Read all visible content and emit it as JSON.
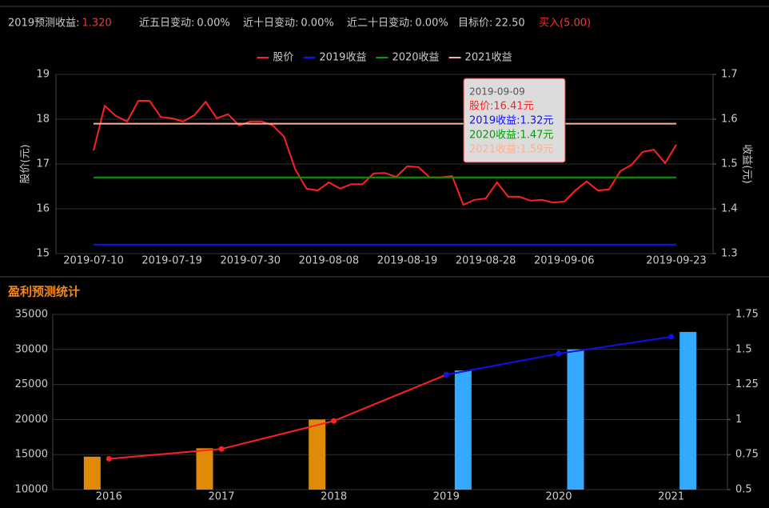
{
  "header": {
    "items": [
      {
        "label": "2019预测收益:",
        "value": "1.320"
      },
      {
        "label": "近五日变动:",
        "value": "0.00%"
      },
      {
        "label": "近十日变动:",
        "value": "0.00%"
      },
      {
        "label": "近二十日变动:",
        "value": "0.00%"
      },
      {
        "label": "目标价:",
        "value": "22.50"
      }
    ],
    "rating": "买入(5.00)"
  },
  "chart_data": [
    {
      "type": "line",
      "ylabel": "股价(元)",
      "y2label": "收益(元)",
      "categories": [
        "2019-07-10",
        null,
        null,
        null,
        null,
        null,
        null,
        "2019-07-19",
        null,
        null,
        null,
        null,
        null,
        null,
        "2019-07-30",
        null,
        null,
        null,
        null,
        null,
        null,
        "2019-08-08",
        null,
        null,
        null,
        null,
        null,
        null,
        "2019-08-19",
        null,
        null,
        null,
        null,
        null,
        null,
        "2019-08-28",
        null,
        null,
        null,
        null,
        null,
        null,
        "2019-09-06",
        null,
        null,
        null,
        null,
        null,
        null,
        null,
        null,
        null,
        "2019-09-23"
      ],
      "series": [
        {
          "name": "股价",
          "color": "#ff2020",
          "values": [
            17.3,
            18.3,
            18.07,
            17.95,
            18.41,
            18.41,
            18.05,
            18.02,
            17.95,
            18.09,
            18.39,
            18.02,
            18.11,
            17.86,
            17.95,
            17.95,
            17.86,
            17.61,
            16.88,
            16.45,
            16.41,
            16.59,
            16.45,
            16.55,
            16.55,
            16.79,
            16.8,
            16.71,
            16.95,
            16.93,
            16.7,
            16.7,
            16.73,
            16.09,
            16.2,
            16.23,
            16.59,
            16.27,
            16.27,
            16.18,
            16.2,
            16.14,
            16.16,
            16.41,
            16.61,
            16.41,
            16.43,
            16.84,
            16.98,
            17.27,
            17.32,
            17.02,
            17.43
          ]
        },
        {
          "name": "2019收益",
          "color": "#1010ff",
          "axis": "y2",
          "values": [
            1.32,
            1.32,
            1.32,
            1.32,
            1.32,
            1.32,
            1.32,
            1.32,
            1.32,
            1.32,
            1.32,
            1.32,
            1.32,
            1.32,
            1.32,
            1.32,
            1.32,
            1.32,
            1.32,
            1.32,
            1.32,
            1.32,
            1.32,
            1.32,
            1.32,
            1.32,
            1.32,
            1.32,
            1.32,
            1.32,
            1.32,
            1.32,
            1.32,
            1.32,
            1.32,
            1.32,
            1.32,
            1.32,
            1.32,
            1.32,
            1.32,
            1.32,
            1.32,
            1.32,
            1.32,
            1.32,
            1.32,
            1.32,
            1.32,
            1.32,
            1.32,
            1.32,
            1.32
          ]
        },
        {
          "name": "2020收益",
          "color": "#00a000",
          "axis": "y2",
          "values": [
            1.47,
            1.47,
            1.47,
            1.47,
            1.47,
            1.47,
            1.47,
            1.47,
            1.47,
            1.47,
            1.47,
            1.47,
            1.47,
            1.47,
            1.47,
            1.47,
            1.47,
            1.47,
            1.47,
            1.47,
            1.47,
            1.47,
            1.47,
            1.47,
            1.47,
            1.47,
            1.47,
            1.47,
            1.47,
            1.47,
            1.47,
            1.47,
            1.47,
            1.47,
            1.47,
            1.47,
            1.47,
            1.47,
            1.47,
            1.47,
            1.47,
            1.47,
            1.47,
            1.47,
            1.47,
            1.47,
            1.47,
            1.47,
            1.47,
            1.47,
            1.47,
            1.47,
            1.47
          ]
        },
        {
          "name": "2021收益",
          "color": "#ffb090",
          "axis": "y2",
          "values": [
            1.59,
            1.59,
            1.59,
            1.59,
            1.59,
            1.59,
            1.59,
            1.59,
            1.59,
            1.59,
            1.59,
            1.59,
            1.59,
            1.59,
            1.59,
            1.59,
            1.59,
            1.59,
            1.59,
            1.59,
            1.59,
            1.59,
            1.59,
            1.59,
            1.59,
            1.59,
            1.59,
            1.59,
            1.59,
            1.59,
            1.59,
            1.59,
            1.59,
            1.59,
            1.59,
            1.59,
            1.59,
            1.59,
            1.59,
            1.59,
            1.59,
            1.59,
            1.59,
            1.59,
            1.59,
            1.59,
            1.59,
            1.59,
            1.59,
            1.59,
            1.59,
            1.59,
            1.59
          ]
        }
      ],
      "ylim": [
        15,
        19
      ],
      "yticks": [
        15,
        16,
        17,
        18,
        19
      ],
      "y2lim": [
        1.3,
        1.7
      ],
      "y2ticks": [
        1.3,
        1.4,
        1.5,
        1.6,
        1.7
      ],
      "grid": true,
      "legend": "top",
      "tooltip": {
        "title": "2019-09-09",
        "lines": [
          "股价:16.41元",
          "2019收益:1.32元",
          "2020收益:1.47元",
          "2021收益:1.59元"
        ]
      }
    },
    {
      "type": "bar",
      "title": "盈利预测统计",
      "categories": [
        "2016",
        "2017",
        "2018",
        "2019",
        "2020",
        "2021"
      ],
      "series": [
        {
          "color": "#e08a0a",
          "values": [
            14700,
            15900,
            20000,
            null,
            null,
            null
          ]
        },
        {
          "color": "#33aaff",
          "values": [
            null,
            null,
            null,
            27000,
            30000,
            32500
          ]
        },
        {
          "type": "line",
          "color": "#ff2020",
          "axis": "y2",
          "values": [
            0.72,
            0.79,
            0.99,
            1.32,
            null,
            null
          ]
        },
        {
          "type": "line",
          "color": "#1010ee",
          "axis": "y2",
          "values": [
            null,
            null,
            null,
            1.32,
            1.47,
            1.59
          ]
        }
      ],
      "ylim": [
        10000,
        35000
      ],
      "yticks": [
        10000,
        15000,
        20000,
        25000,
        30000,
        35000
      ],
      "y2lim": [
        0.5,
        1.75
      ],
      "y2ticks": [
        0.5,
        0.75,
        1,
        1.25,
        1.5,
        1.75
      ],
      "grid": true
    }
  ]
}
